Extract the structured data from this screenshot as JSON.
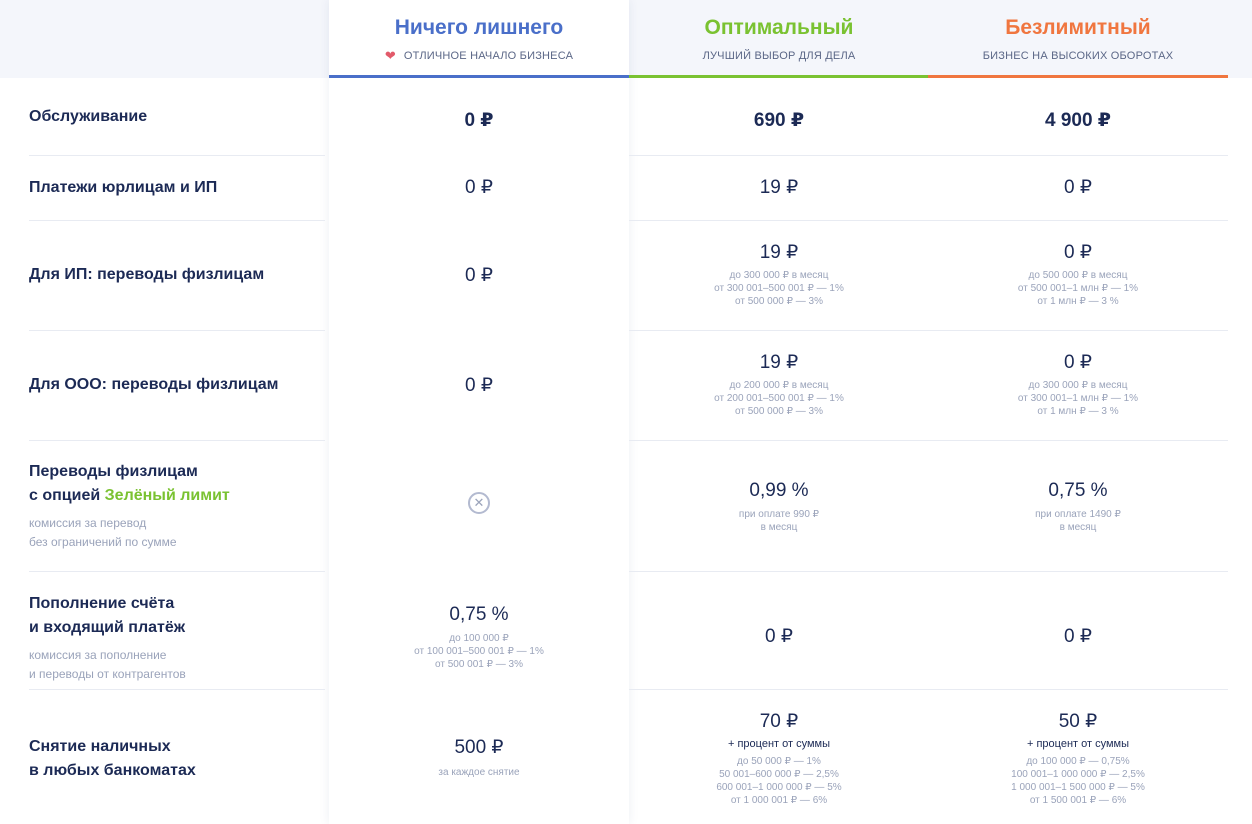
{
  "plans": [
    {
      "name": "Ничего лишнего",
      "subtitle": "ОТЛИЧНОЕ НАЧАЛО БИЗНЕСА",
      "color": "#4a6fc9",
      "icon": "heart-icon"
    },
    {
      "name": "Оптимальный",
      "subtitle": "ЛУЧШИЙ ВЫБОР ДЛЯ ДЕЛА",
      "color": "#7ac231"
    },
    {
      "name": "Безлимитный",
      "subtitle": "БИЗНЕС НА ВЫСОКИХ ОБОРОТАХ",
      "color": "#f0763f"
    }
  ],
  "rows": {
    "service": {
      "label": "Обслуживание",
      "values": [
        "0 ₽",
        "690 ₽",
        "4 900 ₽"
      ]
    },
    "payments": {
      "label": "Платежи юрлицам и ИП",
      "values": [
        "0 ₽",
        "19 ₽",
        "0 ₽"
      ]
    },
    "ip_transfers": {
      "label": "Для ИП: переводы физлицам",
      "values": [
        "0 ₽",
        "19 ₽",
        "0 ₽"
      ],
      "c2_notes": [
        "до 300 000 ₽ в месяц",
        "от 300 001–500 001 ₽ — 1%",
        "от 500 000 ₽ — 3%"
      ],
      "c3_notes": [
        "до 500 000 ₽ в месяц",
        "от 500 001–1 млн ₽ — 1%",
        "от 1 млн ₽ — 3 %"
      ]
    },
    "ooo_transfers": {
      "label": "Для ООО: переводы физлицам",
      "values": [
        "0 ₽",
        "19 ₽",
        "0 ₽"
      ],
      "c2_notes": [
        "до 200 000 ₽ в месяц",
        "от 200 001–500 001 ₽ — 1%",
        "от 500 000 ₽ — 3%"
      ],
      "c3_notes": [
        "до 300 000 ₽ в месяц",
        "от 300 001–1 млн ₽ — 1%",
        "от 1 млн ₽ — 3 %"
      ]
    },
    "green_limit": {
      "label_line1": "Переводы физлицам",
      "label_line2_prefix": "с опцией ",
      "label_line2_highlight": "Зелёный лимит",
      "note_line1": "комиссия за перевод",
      "note_line2": "без ограничений по сумме",
      "c1_icon": "close-circle-icon",
      "values": [
        "",
        "0,99 %",
        "0,75 %"
      ],
      "c2_notes": [
        "при оплате 990 ₽",
        "в месяц"
      ],
      "c3_notes": [
        "при оплате 1490 ₽",
        "в месяц"
      ]
    },
    "topup": {
      "label_line1": "Пополнение счёта",
      "label_line2": "и входящий платёж",
      "note_line1": "комиссия за пополнение",
      "note_line2": "и переводы от контрагентов",
      "values": [
        "0,75 %",
        "0 ₽",
        "0 ₽"
      ],
      "c1_notes": [
        "до 100 000 ₽",
        "от 100 001–500 001 ₽ — 1%",
        "от 500 001 ₽ — 3%"
      ]
    },
    "cash": {
      "label_line1": "Снятие наличных",
      "label_line2": "в любых банкоматах",
      "values": [
        "500 ₽",
        "70 ₽",
        "50 ₽"
      ],
      "c1_notes": [
        "за каждое снятие"
      ],
      "c2_extra": "+ процент от суммы",
      "c3_extra": "+ процент от суммы",
      "c2_notes": [
        "до 50 000 ₽ — 1%",
        "50 001–600 000 ₽ — 2,5%",
        "600 001–1 000 000 ₽ — 5%",
        "от 1 000 001 ₽ — 6%"
      ],
      "c3_notes": [
        "до 100 000 ₽ — 0,75%",
        "100 001–1 000 000 ₽ — 2,5%",
        "1 000 001–1 500 000 ₽ — 5%",
        "от 1 500 001 ₽ — 6%"
      ]
    }
  }
}
